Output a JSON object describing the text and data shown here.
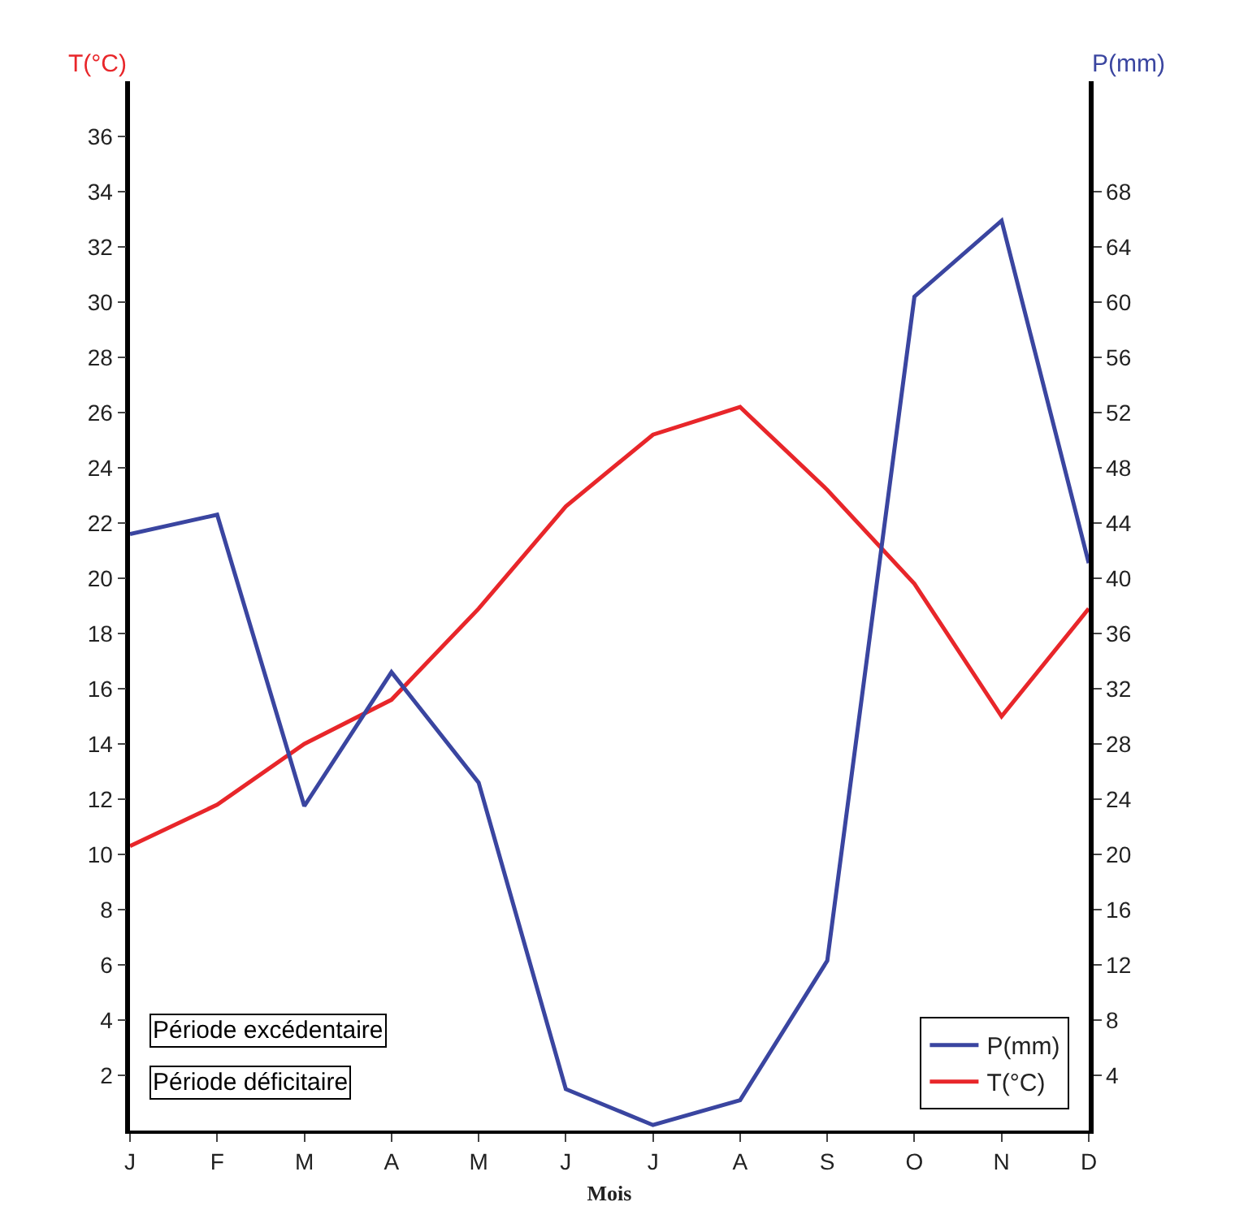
{
  "chart_data": {
    "type": "line",
    "xlabel": "Mois",
    "ylabel": "T(°C)",
    "y2label": "P(mm)",
    "categories": [
      "J",
      "F",
      "M",
      "A",
      "M",
      "J",
      "J",
      "A",
      "S",
      "O",
      "N",
      "D"
    ],
    "series": [
      {
        "name": "P(mm)",
        "color": "#3a45a0",
        "axis": "y2",
        "values": [
          43.2,
          44.6,
          23.5,
          33.2,
          25.2,
          3.0,
          0.4,
          2.2,
          12.3,
          60.4,
          65.9,
          41.1
        ]
      },
      {
        "name": "T(°C)",
        "color": "#e8262a",
        "values": [
          10.3,
          11.8,
          14.0,
          15.6,
          18.9,
          22.6,
          25.2,
          26.2,
          23.2,
          19.8,
          15.0,
          18.9
        ]
      }
    ],
    "ylim": [
      0,
      38
    ],
    "yticks": [
      2,
      4,
      6,
      8,
      10,
      12,
      14,
      16,
      18,
      20,
      22,
      24,
      26,
      28,
      30,
      32,
      34,
      36
    ],
    "y2lim": [
      0,
      76
    ],
    "y2ticks": [
      4,
      8,
      12,
      16,
      20,
      24,
      28,
      32,
      36,
      40,
      44,
      48,
      52,
      56,
      60,
      64,
      68
    ],
    "annotations": [
      "Période excédentaire",
      "Période déficitaire"
    ],
    "legend": "bottom right",
    "marker": "none",
    "line_style": "solid"
  }
}
